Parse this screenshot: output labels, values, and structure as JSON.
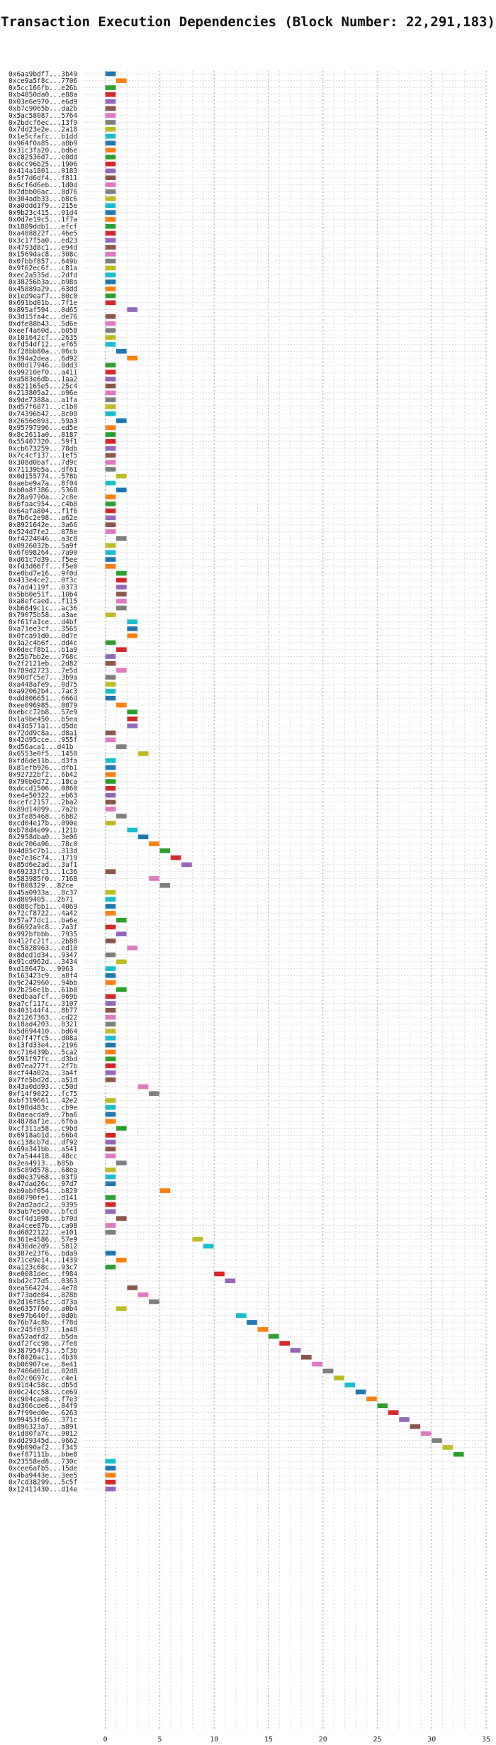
{
  "chart_data": {
    "type": "gantt",
    "title": "Transaction Execution Dependencies (Block Number: 22,291,183)",
    "xlabel": "",
    "ylabel": "",
    "xlim": [
      -2,
      35
    ],
    "xticks": [
      0,
      5,
      10,
      15,
      20,
      25,
      30,
      35
    ],
    "grid": "vertical-dotted",
    "legend": "none",
    "bar_width": 1,
    "palette": [
      "#1f77b4",
      "#ff7f0e",
      "#2ca02c",
      "#d62728",
      "#9467bd",
      "#8c564b",
      "#e377c2",
      "#7f7f7f",
      "#bcbd22",
      "#17becf"
    ],
    "rows": [
      {
        "label": "0x6aa9bdf7...3b49",
        "start": 0,
        "color": 0
      },
      {
        "label": "0xce9a5f8c...7706",
        "start": 1,
        "color": 1
      },
      {
        "label": "0x5cc166fb...e26b",
        "start": 0,
        "color": 2
      },
      {
        "label": "0xb4850da0...e88a",
        "start": 0,
        "color": 3
      },
      {
        "label": "0x03e6e970...e6d9",
        "start": 0,
        "color": 4
      },
      {
        "label": "0xb7c9065b...da2b",
        "start": 0,
        "color": 5
      },
      {
        "label": "0x5ac58087...5764",
        "start": 0,
        "color": 6
      },
      {
        "label": "0x2bdcf6ec...13f9",
        "start": 0,
        "color": 7
      },
      {
        "label": "0x7dd23e2e...2a18",
        "start": 0,
        "color": 8
      },
      {
        "label": "0x1e5cfafc...b1dd",
        "start": 0,
        "color": 9
      },
      {
        "label": "0x964f0a85...a0b9",
        "start": 0,
        "color": 0
      },
      {
        "label": "0x31c3fa20...bd6e",
        "start": 0,
        "color": 1
      },
      {
        "label": "0xc82536d7...e0dd",
        "start": 0,
        "color": 2
      },
      {
        "label": "0x0cc96b25...1906",
        "start": 0,
        "color": 3
      },
      {
        "label": "0x414a1801...0183",
        "start": 0,
        "color": 4
      },
      {
        "label": "0x5f7d6df4...f811",
        "start": 0,
        "color": 5
      },
      {
        "label": "0x6cf6d6eb...1d0d",
        "start": 0,
        "color": 6
      },
      {
        "label": "0x2dbb06ac...0d76",
        "start": 0,
        "color": 7
      },
      {
        "label": "0x304adb33...b8c6",
        "start": 0,
        "color": 8
      },
      {
        "label": "0xa0ddd1f9...215e",
        "start": 0,
        "color": 9
      },
      {
        "label": "0x9b23c415...91d4",
        "start": 0,
        "color": 0
      },
      {
        "label": "0x0d7e19c5...1f7a",
        "start": 0,
        "color": 1
      },
      {
        "label": "0x1809ddb1...efcf",
        "start": 0,
        "color": 2
      },
      {
        "label": "0xa488822f...46e5",
        "start": 0,
        "color": 3
      },
      {
        "label": "0x3c17f5a0...ed23",
        "start": 0,
        "color": 4
      },
      {
        "label": "0x4793d8c1...e94d",
        "start": 0,
        "color": 5
      },
      {
        "label": "0x1569dac8...308c",
        "start": 0,
        "color": 6
      },
      {
        "label": "0x0fbbf857...649b",
        "start": 0,
        "color": 7
      },
      {
        "label": "0x9f62ec6f...c81a",
        "start": 0,
        "color": 8
      },
      {
        "label": "0xec2a535d...2dfd",
        "start": 0,
        "color": 9
      },
      {
        "label": "0x38256b3a...b98a",
        "start": 0,
        "color": 0
      },
      {
        "label": "0x45889a29...63dd",
        "start": 0,
        "color": 1
      },
      {
        "label": "0x1ed9eaf7...80c0",
        "start": 0,
        "color": 2
      },
      {
        "label": "0x691bd01b...7f1e",
        "start": 0,
        "color": 3
      },
      {
        "label": "0x895af594...0d65",
        "start": 2,
        "color": 4
      },
      {
        "label": "0x3d15fa4c...de76",
        "start": 0,
        "color": 5
      },
      {
        "label": "0xdfe88b43...5d6e",
        "start": 0,
        "color": 6
      },
      {
        "label": "0xeef4a60d...b058",
        "start": 0,
        "color": 7
      },
      {
        "label": "0x101642cf...2635",
        "start": 0,
        "color": 8
      },
      {
        "label": "0xfd54df12...ef65",
        "start": 0,
        "color": 9
      },
      {
        "label": "0xf28bb80a...06cb",
        "start": 1,
        "color": 0
      },
      {
        "label": "0x394a2dea...6d92",
        "start": 2,
        "color": 1
      },
      {
        "label": "0x00d17946...0dd3",
        "start": 0,
        "color": 2
      },
      {
        "label": "0x99210ef0...a411",
        "start": 0,
        "color": 3
      },
      {
        "label": "0xa583e6db...1aa2",
        "start": 0,
        "color": 4
      },
      {
        "label": "0x821165e5...25c4",
        "start": 0,
        "color": 5
      },
      {
        "label": "0x213805a2...b96e",
        "start": 0,
        "color": 6
      },
      {
        "label": "0x9de7388a...a1fa",
        "start": 0,
        "color": 7
      },
      {
        "label": "0xd57f6871...c1b0",
        "start": 0,
        "color": 8
      },
      {
        "label": "0x74396b42...8c08",
        "start": 0,
        "color": 9
      },
      {
        "label": "0x2656e893...59a3",
        "start": 1,
        "color": 0
      },
      {
        "label": "0x95797996...ed5e",
        "start": 0,
        "color": 1
      },
      {
        "label": "0x8c2611a0...8187",
        "start": 0,
        "color": 2
      },
      {
        "label": "0x55407320...59f1",
        "start": 0,
        "color": 3
      },
      {
        "label": "0xcb673259...78db",
        "start": 0,
        "color": 4
      },
      {
        "label": "0x7c4cf137...1ef5",
        "start": 0,
        "color": 5
      },
      {
        "label": "0x308d0baf...7d9c",
        "start": 0,
        "color": 6
      },
      {
        "label": "0x71139b5a...df61",
        "start": 0,
        "color": 7
      },
      {
        "label": "0x0d155774...578b",
        "start": 1,
        "color": 8
      },
      {
        "label": "0xaebe9a7a...8f04",
        "start": 0,
        "color": 9
      },
      {
        "label": "0xb0a8f386...5368",
        "start": 1,
        "color": 0
      },
      {
        "label": "0x28a9790a...2c8e",
        "start": 0,
        "color": 1
      },
      {
        "label": "0x6faac954...c4b8",
        "start": 0,
        "color": 2
      },
      {
        "label": "0x64afa804...f1f6",
        "start": 0,
        "color": 3
      },
      {
        "label": "0x7b6c2e98...a62e",
        "start": 0,
        "color": 4
      },
      {
        "label": "0x8921642e...3a66",
        "start": 0,
        "color": 5
      },
      {
        "label": "0x524d7fe2...878e",
        "start": 0,
        "color": 6
      },
      {
        "label": "0xf4224046...a3c8",
        "start": 1,
        "color": 7
      },
      {
        "label": "0x0926032b...5a9f",
        "start": 0,
        "color": 8
      },
      {
        "label": "0x6f098264...7a90",
        "start": 0,
        "color": 9
      },
      {
        "label": "0xd61c7d39...f5ee",
        "start": 0,
        "color": 0
      },
      {
        "label": "0xfd3d66ff...f5e0",
        "start": 0,
        "color": 1
      },
      {
        "label": "0xe0bd7e16...9f0d",
        "start": 1,
        "color": 2
      },
      {
        "label": "0x433e4ce2...0f3c",
        "start": 1,
        "color": 3
      },
      {
        "label": "0x7ad4119f...0373",
        "start": 1,
        "color": 4
      },
      {
        "label": "0x5bb0e51f...10b4",
        "start": 1,
        "color": 5
      },
      {
        "label": "0xa8efcaed...f115",
        "start": 1,
        "color": 6
      },
      {
        "label": "0xb6849c1c...ac36",
        "start": 1,
        "color": 7
      },
      {
        "label": "0x79075b58...a3ae",
        "start": 0,
        "color": 8
      },
      {
        "label": "0xf61fa1ce...d4bf",
        "start": 2,
        "color": 9
      },
      {
        "label": "0xa71ee3cf...3565",
        "start": 2,
        "color": 0
      },
      {
        "label": "0x0fca91d0...0d7e",
        "start": 2,
        "color": 1
      },
      {
        "label": "0x3a2c4b6f...dd4c",
        "start": 0,
        "color": 2
      },
      {
        "label": "0x0decf8b1...b1a9",
        "start": 1,
        "color": 3
      },
      {
        "label": "0x25b7bb2e...768c",
        "start": 0,
        "color": 4
      },
      {
        "label": "0x2f2121eb...2d82",
        "start": 0,
        "color": 5
      },
      {
        "label": "0x789d2723...7e5d",
        "start": 1,
        "color": 6
      },
      {
        "label": "0x90dfc5e7...3b9a",
        "start": 0,
        "color": 7
      },
      {
        "label": "0xa448afe9...0d75",
        "start": 0,
        "color": 8
      },
      {
        "label": "0xa92062b4...7ac3",
        "start": 0,
        "color": 9
      },
      {
        "label": "0xdd806651...666d",
        "start": 0,
        "color": 0
      },
      {
        "label": "0xee096985...0079",
        "start": 1,
        "color": 1
      },
      {
        "label": "0xebcc72b8...57e9",
        "start": 2,
        "color": 2
      },
      {
        "label": "0x1a9be450...b5ea",
        "start": 2,
        "color": 3
      },
      {
        "label": "0x43d571a1...d5de",
        "start": 2,
        "color": 4
      },
      {
        "label": "0x72dd9c8a...d8a1",
        "start": 0,
        "color": 5
      },
      {
        "label": "0x42d95cce...955f",
        "start": 0,
        "color": 6
      },
      {
        "label": "0xd56aca1...d41b",
        "start": 1,
        "color": 7
      },
      {
        "label": "0x6553e0f5...1450",
        "start": 3,
        "color": 8
      },
      {
        "label": "0xfd6de11b...d3fa",
        "start": 0,
        "color": 9
      },
      {
        "label": "0x81efb926...dfb1",
        "start": 0,
        "color": 0
      },
      {
        "label": "0x92722bf2...6b42",
        "start": 0,
        "color": 1
      },
      {
        "label": "0x790b0d72...18ca",
        "start": 0,
        "color": 2
      },
      {
        "label": "0xdccd1506...0860",
        "start": 0,
        "color": 3
      },
      {
        "label": "0xe4e50322...eb63",
        "start": 0,
        "color": 4
      },
      {
        "label": "0xcefc2157...2ba2",
        "start": 0,
        "color": 5
      },
      {
        "label": "0x89d14099...7a2b",
        "start": 0,
        "color": 6
      },
      {
        "label": "0x3fe85468...6b82",
        "start": 1,
        "color": 7
      },
      {
        "label": "0xcd04e17b...090e",
        "start": 0,
        "color": 8
      },
      {
        "label": "0xb78d4e09...121b",
        "start": 2,
        "color": 9
      },
      {
        "label": "0x2958dba0...3e06",
        "start": 3,
        "color": 0
      },
      {
        "label": "0xdc706a96...78c0",
        "start": 4,
        "color": 1
      },
      {
        "label": "0x4d85c7b1...313d",
        "start": 5,
        "color": 2
      },
      {
        "label": "0xe7e36c74...1719",
        "start": 6,
        "color": 3
      },
      {
        "label": "0x85d6e2ad...3af1",
        "start": 7,
        "color": 4
      },
      {
        "label": "0x69233fc3...1c36",
        "start": 0,
        "color": 5
      },
      {
        "label": "0x583985f0...7168",
        "start": 4,
        "color": 6
      },
      {
        "label": "0xf808329...82ce",
        "start": 5,
        "color": 7
      },
      {
        "label": "0x45a0933a...8c37",
        "start": 0,
        "color": 8
      },
      {
        "label": "0xd809405...2b71",
        "start": 0,
        "color": 9
      },
      {
        "label": "0xd88cfbb1...4069",
        "start": 0,
        "color": 0
      },
      {
        "label": "0x72cf8722...4a42",
        "start": 0,
        "color": 1
      },
      {
        "label": "0x57a77dc1...ba6e",
        "start": 1,
        "color": 2
      },
      {
        "label": "0x6692a9c8...7a3f",
        "start": 0,
        "color": 3
      },
      {
        "label": "0x992bfbbb...7935",
        "start": 1,
        "color": 4
      },
      {
        "label": "0x412fc21f...2b88",
        "start": 0,
        "color": 5
      },
      {
        "label": "0xc5828963...ed10",
        "start": 2,
        "color": 6
      },
      {
        "label": "0x8ded1d34...9347",
        "start": 0,
        "color": 7
      },
      {
        "label": "0x91cd962d...3434",
        "start": 1,
        "color": 8
      },
      {
        "label": "0xd18647b...9963",
        "start": 0,
        "color": 9
      },
      {
        "label": "0x163423c9...a8f4",
        "start": 0,
        "color": 0
      },
      {
        "label": "0x9c242960...94bb",
        "start": 0,
        "color": 1
      },
      {
        "label": "0x2b256e1b...61b8",
        "start": 1,
        "color": 2
      },
      {
        "label": "0xedbaafcf...069b",
        "start": 0,
        "color": 3
      },
      {
        "label": "0xa7cf117c...3107",
        "start": 0,
        "color": 4
      },
      {
        "label": "0x403144f4...8b77",
        "start": 0,
        "color": 5
      },
      {
        "label": "0x21267363...cd22",
        "start": 0,
        "color": 6
      },
      {
        "label": "0x18ad4203...0321",
        "start": 0,
        "color": 7
      },
      {
        "label": "0x5d694410...bd64",
        "start": 0,
        "color": 8
      },
      {
        "label": "0xe7f47fc5...d08a",
        "start": 0,
        "color": 9
      },
      {
        "label": "0x13fd33e4...2196",
        "start": 0,
        "color": 0
      },
      {
        "label": "0xc716439b...5ca2",
        "start": 0,
        "color": 1
      },
      {
        "label": "0x591f97fc...d3bd",
        "start": 0,
        "color": 2
      },
      {
        "label": "0x07ea277f...2f7b",
        "start": 0,
        "color": 3
      },
      {
        "label": "0xcf44a02a...3a4f",
        "start": 0,
        "color": 4
      },
      {
        "label": "0x7fe5bd2d...a51d",
        "start": 0,
        "color": 5
      },
      {
        "label": "0x43a0dd93...c50d",
        "start": 3,
        "color": 6
      },
      {
        "label": "0xf14f9022...fc75",
        "start": 4,
        "color": 7
      },
      {
        "label": "0xbf319661...42e2",
        "start": 0,
        "color": 8
      },
      {
        "label": "0x198d483c...cb9e",
        "start": 0,
        "color": 9
      },
      {
        "label": "0x0aeacda9...7ba6",
        "start": 0,
        "color": 0
      },
      {
        "label": "0x4878af1e...6f6a",
        "start": 0,
        "color": 1
      },
      {
        "label": "0xcf311a58...c9bd",
        "start": 1,
        "color": 2
      },
      {
        "label": "0x6918ab1d...66b4",
        "start": 0,
        "color": 3
      },
      {
        "label": "0xc138cb7d...df92",
        "start": 0,
        "color": 4
      },
      {
        "label": "0x69a341bb...a541",
        "start": 0,
        "color": 5
      },
      {
        "label": "0x7a544418...48cc",
        "start": 0,
        "color": 6
      },
      {
        "label": "0x2ea4913...b85b",
        "start": 1,
        "color": 7
      },
      {
        "label": "0x5c89d578...68ea",
        "start": 0,
        "color": 8
      },
      {
        "label": "0xd0e37968...03f9",
        "start": 0,
        "color": 9
      },
      {
        "label": "0x47dad26c...97d7",
        "start": 0,
        "color": 0
      },
      {
        "label": "0xb9abf054...b829",
        "start": 5,
        "color": 1
      },
      {
        "label": "0x60790fe1...d141",
        "start": 0,
        "color": 2
      },
      {
        "label": "0x2ad2adc2...9395",
        "start": 0,
        "color": 3
      },
      {
        "label": "0x5ab7e500...bfcd",
        "start": 0,
        "color": 4
      },
      {
        "label": "0xcf4d1098...b70d",
        "start": 1,
        "color": 5
      },
      {
        "label": "0xa4cee87b...ca98",
        "start": 0,
        "color": 6
      },
      {
        "label": "0xd6822122...e101",
        "start": 0,
        "color": 7
      },
      {
        "label": "0x361e4586...57e9",
        "start": 8,
        "color": 8
      },
      {
        "label": "0x430de2d9...5812",
        "start": 9,
        "color": 9
      },
      {
        "label": "0x387e23f6...bda9",
        "start": 0,
        "color": 0
      },
      {
        "label": "0x71ce9e14...1439",
        "start": 1,
        "color": 1
      },
      {
        "label": "0xa123c68c...93c7",
        "start": 0,
        "color": 2
      },
      {
        "label": "0xe0081dec...f984",
        "start": 10,
        "color": 3
      },
      {
        "label": "0xbd2c77d5...0363",
        "start": 11,
        "color": 4
      },
      {
        "label": "0xea564224...4e78",
        "start": 2,
        "color": 5
      },
      {
        "label": "0xf73ade84...828b",
        "start": 3,
        "color": 6
      },
      {
        "label": "0x2d16f85c...d73a",
        "start": 4,
        "color": 7
      },
      {
        "label": "0xe6357f60...a0b4",
        "start": 1,
        "color": 8
      },
      {
        "label": "0xe97b640f...0d0b",
        "start": 12,
        "color": 9
      },
      {
        "label": "0x76b74c8b...f78d",
        "start": 13,
        "color": 0
      },
      {
        "label": "0xc245f037...1a48",
        "start": 14,
        "color": 1
      },
      {
        "label": "0xa52adfd2...b5da",
        "start": 15,
        "color": 2
      },
      {
        "label": "0xdf2fcc98...7fe8",
        "start": 16,
        "color": 3
      },
      {
        "label": "0x38795473...5f3b",
        "start": 17,
        "color": 4
      },
      {
        "label": "0xf8020ac1...4b30",
        "start": 18,
        "color": 5
      },
      {
        "label": "0xb06907ce...8e41",
        "start": 19,
        "color": 6
      },
      {
        "label": "0x7406d01d...02d8",
        "start": 20,
        "color": 7
      },
      {
        "label": "0x02c0697c...c4e1",
        "start": 21,
        "color": 8
      },
      {
        "label": "0x91d4c58c...db5d",
        "start": 22,
        "color": 9
      },
      {
        "label": "0x0c24cc58...ce69",
        "start": 23,
        "color": 0
      },
      {
        "label": "0xc904cae8...f7e3",
        "start": 24,
        "color": 1
      },
      {
        "label": "0xd366cde6...04f9",
        "start": 25,
        "color": 2
      },
      {
        "label": "0x7f99ed0e...6263",
        "start": 26,
        "color": 3
      },
      {
        "label": "0x99453fd6...371c",
        "start": 27,
        "color": 4
      },
      {
        "label": "0x896323a7...a891",
        "start": 28,
        "color": 5
      },
      {
        "label": "0x1d80fa7c...9012",
        "start": 29,
        "color": 6
      },
      {
        "label": "0xdd29345d...9662",
        "start": 30,
        "color": 7
      },
      {
        "label": "0x9b090af2...f345",
        "start": 31,
        "color": 8
      },
      {
        "label": "0xef87111b...bbe8",
        "start": 32,
        "color": 2
      },
      {
        "label": "0x23558ed8...730c",
        "start": 0,
        "color": 9
      },
      {
        "label": "0xcee6afb5...15de",
        "start": 0,
        "color": 0
      },
      {
        "label": "0x4ba9443e...3ee5",
        "start": 0,
        "color": 1
      },
      {
        "label": "0x7cd38299...5c5f",
        "start": 0,
        "color": 3
      },
      {
        "label": "0x12411430...d14e",
        "start": 0,
        "color": 4
      }
    ]
  }
}
